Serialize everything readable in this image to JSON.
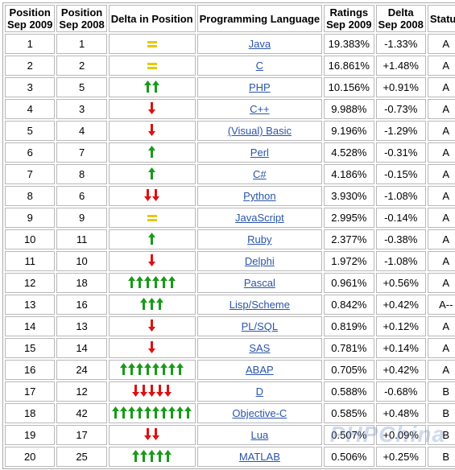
{
  "columns": {
    "pos2009": [
      "Position",
      "Sep 2009"
    ],
    "pos2008": [
      "Position",
      "Sep 2008"
    ],
    "delta_pos": "Delta in Position",
    "language": "Programming Language",
    "ratings": [
      "Ratings",
      "Sep 2009"
    ],
    "delta_rating": [
      "Delta",
      "Sep 2008"
    ],
    "status": "Status"
  },
  "colors": {
    "up": "#1a9a1a",
    "down": "#dd1111",
    "same": "#e8c800",
    "link": "#2a55a8"
  },
  "rows": [
    {
      "p09": "1",
      "p08": "1",
      "dir": "same",
      "n": 1,
      "lang": "Java",
      "rating": "19.383%",
      "delta": "-1.33%",
      "status": "A"
    },
    {
      "p09": "2",
      "p08": "2",
      "dir": "same",
      "n": 1,
      "lang": "C",
      "rating": "16.861%",
      "delta": "+1.48%",
      "status": "A"
    },
    {
      "p09": "3",
      "p08": "5",
      "dir": "up",
      "n": 2,
      "lang": "PHP",
      "rating": "10.156%",
      "delta": "+0.91%",
      "status": "A"
    },
    {
      "p09": "4",
      "p08": "3",
      "dir": "down",
      "n": 1,
      "lang": "C++",
      "rating": "9.988%",
      "delta": "-0.73%",
      "status": "A"
    },
    {
      "p09": "5",
      "p08": "4",
      "dir": "down",
      "n": 1,
      "lang": "(Visual) Basic",
      "rating": "9.196%",
      "delta": "-1.29%",
      "status": "A"
    },
    {
      "p09": "6",
      "p08": "7",
      "dir": "up",
      "n": 1,
      "lang": "Perl",
      "rating": "4.528%",
      "delta": "-0.31%",
      "status": "A"
    },
    {
      "p09": "7",
      "p08": "8",
      "dir": "up",
      "n": 1,
      "lang": "C#",
      "rating": "4.186%",
      "delta": "-0.15%",
      "status": "A"
    },
    {
      "p09": "8",
      "p08": "6",
      "dir": "down",
      "n": 2,
      "lang": "Python",
      "rating": "3.930%",
      "delta": "-1.08%",
      "status": "A"
    },
    {
      "p09": "9",
      "p08": "9",
      "dir": "same",
      "n": 1,
      "lang": "JavaScript",
      "rating": "2.995%",
      "delta": "-0.14%",
      "status": "A"
    },
    {
      "p09": "10",
      "p08": "11",
      "dir": "up",
      "n": 1,
      "lang": "Ruby",
      "rating": "2.377%",
      "delta": "-0.38%",
      "status": "A"
    },
    {
      "p09": "11",
      "p08": "10",
      "dir": "down",
      "n": 1,
      "lang": "Delphi",
      "rating": "1.972%",
      "delta": "-1.08%",
      "status": "A"
    },
    {
      "p09": "12",
      "p08": "18",
      "dir": "up",
      "n": 6,
      "lang": "Pascal",
      "rating": "0.961%",
      "delta": "+0.56%",
      "status": "A"
    },
    {
      "p09": "13",
      "p08": "16",
      "dir": "up",
      "n": 3,
      "lang": "Lisp/Scheme",
      "rating": "0.842%",
      "delta": "+0.42%",
      "status": "A--"
    },
    {
      "p09": "14",
      "p08": "13",
      "dir": "down",
      "n": 1,
      "lang": "PL/SQL",
      "rating": "0.819%",
      "delta": "+0.12%",
      "status": "A"
    },
    {
      "p09": "15",
      "p08": "14",
      "dir": "down",
      "n": 1,
      "lang": "SAS",
      "rating": "0.781%",
      "delta": "+0.14%",
      "status": "A"
    },
    {
      "p09": "16",
      "p08": "24",
      "dir": "up",
      "n": 8,
      "lang": "ABAP",
      "rating": "0.705%",
      "delta": "+0.42%",
      "status": "A"
    },
    {
      "p09": "17",
      "p08": "12",
      "dir": "down",
      "n": 5,
      "lang": "D",
      "rating": "0.588%",
      "delta": "-0.68%",
      "status": "B"
    },
    {
      "p09": "18",
      "p08": "42",
      "dir": "up",
      "n": 10,
      "lang": "Objective-C",
      "rating": "0.585%",
      "delta": "+0.48%",
      "status": "B"
    },
    {
      "p09": "19",
      "p08": "17",
      "dir": "down",
      "n": 2,
      "lang": "Lua",
      "rating": "0.507%",
      "delta": "+0.09%",
      "status": "B"
    },
    {
      "p09": "20",
      "p08": "25",
      "dir": "up",
      "n": 5,
      "lang": "MATLAB",
      "rating": "0.506%",
      "delta": "+0.25%",
      "status": "B"
    }
  ],
  "watermark": "PHPChina"
}
